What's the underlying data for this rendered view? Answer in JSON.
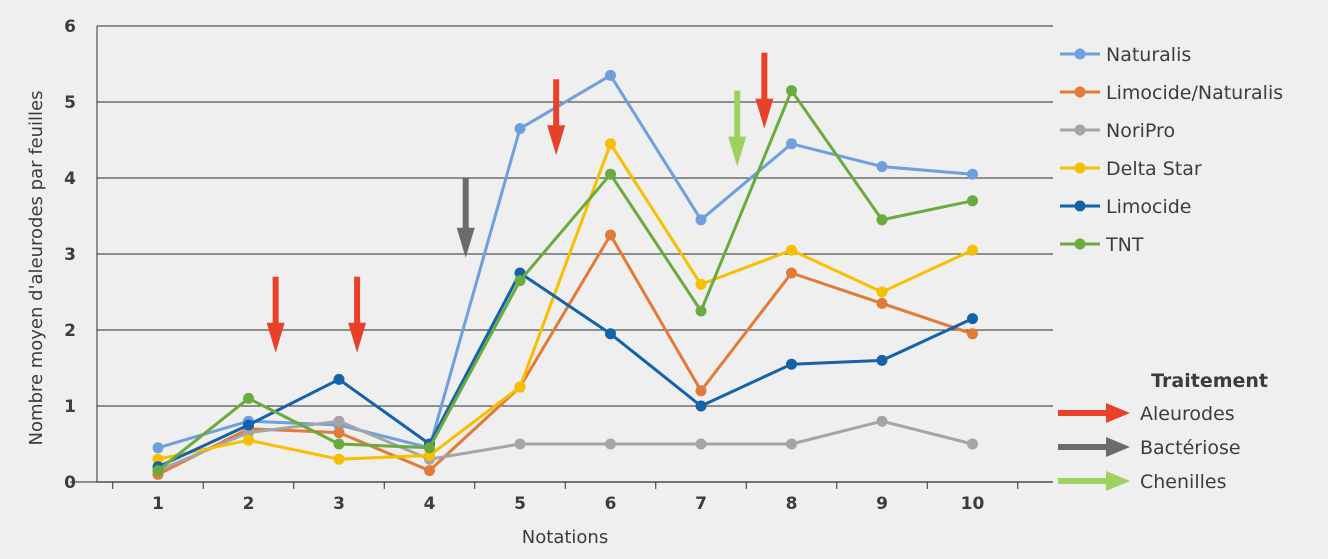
{
  "chart_data": {
    "type": "line",
    "title": "",
    "xlabel": "Notations",
    "ylabel": "Nombre moyen d'aleurodes par feuilles",
    "ylim": [
      0,
      6
    ],
    "yticks": [
      0,
      1,
      2,
      3,
      4,
      5,
      6
    ],
    "categories": [
      "1",
      "2",
      "3",
      "4",
      "5",
      "6",
      "7",
      "8",
      "9",
      "10"
    ],
    "grid": true,
    "legend_position": "right",
    "series": [
      {
        "name": "Naturalis",
        "color": "#6f9fdc",
        "values": [
          0.45,
          0.8,
          0.75,
          0.45,
          4.65,
          5.35,
          3.45,
          4.45,
          4.15,
          4.05
        ]
      },
      {
        "name": "Limocide/Naturalis",
        "color": "#e07b39",
        "values": [
          0.1,
          0.7,
          0.65,
          0.15,
          1.25,
          3.25,
          1.2,
          2.75,
          2.35,
          1.95
        ]
      },
      {
        "name": "NoriPro",
        "color": "#a5a5a5",
        "values": [
          0.15,
          0.65,
          0.8,
          0.3,
          0.5,
          0.5,
          0.5,
          0.5,
          0.8,
          0.5
        ]
      },
      {
        "name": "Delta Star",
        "color": "#f6c000",
        "values": [
          0.3,
          0.55,
          0.3,
          0.35,
          1.25,
          4.45,
          2.6,
          3.05,
          2.5,
          3.05
        ]
      },
      {
        "name": "Limocide",
        "color": "#1462a8",
        "values": [
          0.2,
          0.75,
          1.35,
          0.5,
          2.75,
          1.95,
          1.0,
          1.55,
          1.6,
          2.15
        ]
      },
      {
        "name": "TNT",
        "color": "#6aab3e",
        "values": [
          0.15,
          1.1,
          0.5,
          0.45,
          2.65,
          4.05,
          2.25,
          5.15,
          3.45,
          3.7
        ]
      }
    ],
    "annotations": [
      {
        "type": "Aleurodes",
        "color": "#e8412a",
        "x": 2.3,
        "y_top": 2.7,
        "y_bottom": 1.7
      },
      {
        "type": "Aleurodes",
        "color": "#e8412a",
        "x": 3.2,
        "y_top": 2.7,
        "y_bottom": 1.7
      },
      {
        "type": "Bactériose",
        "color": "#6b6b6b",
        "x": 4.4,
        "y_top": 4.0,
        "y_bottom": 2.95
      },
      {
        "type": "Aleurodes",
        "color": "#e8412a",
        "x": 5.4,
        "y_top": 5.3,
        "y_bottom": 4.3
      },
      {
        "type": "Chenilles",
        "color": "#9ed160",
        "x": 7.4,
        "y_top": 5.15,
        "y_bottom": 4.15
      },
      {
        "type": "Aleurodes",
        "color": "#e8412a",
        "x": 7.7,
        "y_top": 5.65,
        "y_bottom": 4.65
      }
    ],
    "treatment_legend": {
      "heading": "Traitement",
      "items": [
        {
          "label": "Aleurodes",
          "color": "#e8412a"
        },
        {
          "label": "Bactériose",
          "color": "#6b6b6b"
        },
        {
          "label": "Chenilles",
          "color": "#9ed160"
        }
      ]
    }
  }
}
